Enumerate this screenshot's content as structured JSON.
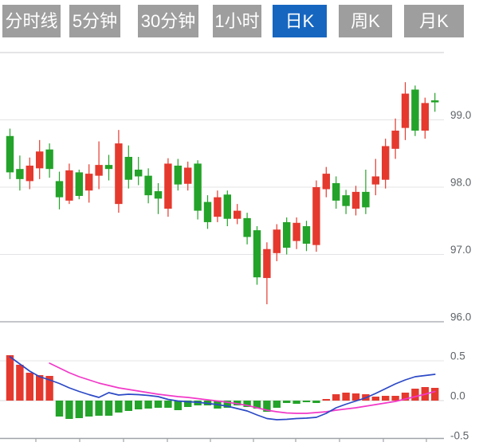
{
  "tabs": {
    "active_index": 4,
    "items": [
      {
        "name": "tab-time-line",
        "label": "分时线"
      },
      {
        "name": "tab-5min",
        "label": "5分钟"
      },
      {
        "name": "tab-30min",
        "label": "30分钟"
      },
      {
        "name": "tab-1hour",
        "label": "1小时"
      },
      {
        "name": "tab-daily-k",
        "label": "日K"
      },
      {
        "name": "tab-weekly-k",
        "label": "周K"
      },
      {
        "name": "tab-monthly-k",
        "label": "月K"
      }
    ]
  },
  "colors": {
    "up": "#e5392e",
    "down": "#23a329",
    "dif_line": "#2c49c6",
    "dea_line": "#f238c8",
    "tab_bg": "#9e9e9e",
    "tab_active_bg": "#1666c0",
    "tab_text": "#ffffff",
    "grid": "#e4e4e6",
    "panel_top_border": "#cbcbcd",
    "panel_bottom_border": "#b0b3b8",
    "zero_line": "#d9d9db",
    "x_axis": "#9fa3a8",
    "axis_label": "#5f6468"
  },
  "chart_data": {
    "type": "candlestick",
    "description": "Daily K-line chart with MACD sub-panel; red = up, green = down (Chinese convention)",
    "price_panel": {
      "y_axis_labels": [
        {
          "text": "99.0",
          "value": 99.0
        },
        {
          "text": "98.0",
          "value": 98.0
        },
        {
          "text": "97.0",
          "value": 97.0
        },
        {
          "text": "96.0",
          "value": 96.0
        }
      ],
      "y_range": [
        96.0,
        100.0
      ],
      "grid_values": [
        99.0,
        98.0,
        97.0
      ],
      "candle_format": [
        "open",
        "high",
        "low",
        "close",
        "color(r=up,g=down)"
      ],
      "candles": [
        [
          98.76,
          98.87,
          98.12,
          98.22,
          "g"
        ],
        [
          98.27,
          98.47,
          97.95,
          98.12,
          "g"
        ],
        [
          98.09,
          98.44,
          97.97,
          98.32,
          "r"
        ],
        [
          98.28,
          98.7,
          98.12,
          98.53,
          "r"
        ],
        [
          98.56,
          98.65,
          98.14,
          98.27,
          "g"
        ],
        [
          98.09,
          98.23,
          97.67,
          97.85,
          "g"
        ],
        [
          97.8,
          98.35,
          97.75,
          98.25,
          "r"
        ],
        [
          98.22,
          98.26,
          97.82,
          97.87,
          "g"
        ],
        [
          97.95,
          98.34,
          97.77,
          98.2,
          "r"
        ],
        [
          98.17,
          98.68,
          97.97,
          98.33,
          "r"
        ],
        [
          98.33,
          98.48,
          98.1,
          98.27,
          "g"
        ],
        [
          97.75,
          98.85,
          97.62,
          98.65,
          "r"
        ],
        [
          98.45,
          98.62,
          97.98,
          98.11,
          "g"
        ],
        [
          98.26,
          98.45,
          98.03,
          98.16,
          "g"
        ],
        [
          98.17,
          98.28,
          97.76,
          97.88,
          "g"
        ],
        [
          97.94,
          98.06,
          97.6,
          97.83,
          "g"
        ],
        [
          97.68,
          98.43,
          97.56,
          98.35,
          "r"
        ],
        [
          98.32,
          98.42,
          97.95,
          98.04,
          "g"
        ],
        [
          98.05,
          98.38,
          97.95,
          98.29,
          "r"
        ],
        [
          98.35,
          98.4,
          97.52,
          97.65,
          "g"
        ],
        [
          97.78,
          97.88,
          97.38,
          97.48,
          "g"
        ],
        [
          97.56,
          97.95,
          97.48,
          97.85,
          "r"
        ],
        [
          97.89,
          97.95,
          97.42,
          97.53,
          "g"
        ],
        [
          97.53,
          97.75,
          97.45,
          97.65,
          "r"
        ],
        [
          97.54,
          97.62,
          97.15,
          97.26,
          "g"
        ],
        [
          97.36,
          97.42,
          96.55,
          96.66,
          "g"
        ],
        [
          96.65,
          97.18,
          96.26,
          97.08,
          "r"
        ],
        [
          97.02,
          97.45,
          96.9,
          97.37,
          "r"
        ],
        [
          97.48,
          97.55,
          97.0,
          97.1,
          "g"
        ],
        [
          97.2,
          97.55,
          97.08,
          97.47,
          "r"
        ],
        [
          97.42,
          97.5,
          97.05,
          97.16,
          "g"
        ],
        [
          97.14,
          98.1,
          97.04,
          98.0,
          "r"
        ],
        [
          97.97,
          98.3,
          97.85,
          98.2,
          "r"
        ],
        [
          98.06,
          98.16,
          97.68,
          97.8,
          "g"
        ],
        [
          97.88,
          97.96,
          97.6,
          97.72,
          "g"
        ],
        [
          97.68,
          98.02,
          97.58,
          97.93,
          "r"
        ],
        [
          97.93,
          98.26,
          97.6,
          97.7,
          "g"
        ],
        [
          98.04,
          98.42,
          97.88,
          98.16,
          "r"
        ],
        [
          98.11,
          98.72,
          97.98,
          98.61,
          "r"
        ],
        [
          98.57,
          99.02,
          98.42,
          98.84,
          "r"
        ],
        [
          98.88,
          99.56,
          98.7,
          99.39,
          "r"
        ],
        [
          99.45,
          99.51,
          98.76,
          98.84,
          "g"
        ],
        [
          98.84,
          99.33,
          98.72,
          99.25,
          "r"
        ],
        [
          99.29,
          99.4,
          99.12,
          99.26,
          "g"
        ]
      ]
    },
    "macd_panel": {
      "y_axis_labels": [
        {
          "text": "0.5",
          "value": 0.5
        },
        {
          "text": "0.0",
          "value": 0.0
        },
        {
          "text": "-0.5",
          "value": -0.5
        }
      ],
      "y_range": [
        -0.5,
        0.6
      ],
      "grid_values": [
        0.5
      ],
      "histogram": [
        0.57,
        0.45,
        0.35,
        0.32,
        0.31,
        -0.2,
        -0.23,
        -0.22,
        -0.2,
        -0.19,
        -0.19,
        -0.15,
        -0.13,
        -0.11,
        -0.1,
        -0.09,
        -0.09,
        -0.12,
        -0.08,
        -0.06,
        -0.06,
        -0.1,
        -0.09,
        -0.06,
        -0.08,
        -0.1,
        -0.14,
        -0.09,
        -0.03,
        -0.04,
        -0.02,
        -0.03,
        0.02,
        0.08,
        0.1,
        0.09,
        0.08,
        0.05,
        0.06,
        0.06,
        0.1,
        0.15,
        0.17,
        0.16
      ],
      "dif": [
        0.55,
        0.46,
        0.37,
        0.3,
        0.26,
        0.215,
        0.16,
        0.115,
        0.075,
        0.04,
        0.1,
        0.07,
        0.08,
        0.075,
        0.065,
        0.05,
        0.015,
        -0.005,
        -0.015,
        -0.02,
        -0.035,
        -0.05,
        -0.07,
        -0.1,
        -0.13,
        -0.18,
        -0.225,
        -0.24,
        -0.235,
        -0.225,
        -0.22,
        -0.21,
        -0.16,
        -0.09,
        -0.045,
        -0.005,
        0.035,
        0.09,
        0.15,
        0.21,
        0.26,
        0.3,
        0.315,
        0.33
      ],
      "dea": [
        null,
        null,
        null,
        null,
        0.47,
        0.41,
        0.35,
        0.3,
        0.26,
        0.22,
        0.19,
        0.16,
        0.14,
        0.12,
        0.1,
        0.08,
        0.065,
        0.05,
        0.04,
        0.025,
        0.01,
        -0.005,
        -0.02,
        -0.04,
        -0.06,
        -0.09,
        -0.12,
        -0.14,
        -0.155,
        -0.16,
        -0.16,
        -0.15,
        -0.14,
        -0.12,
        -0.105,
        -0.09,
        -0.07,
        -0.05,
        -0.03,
        -0.01,
        0.02,
        0.05,
        0.08,
        0.115
      ]
    },
    "x_axis_ticks": [
      45,
      100,
      155,
      210,
      264,
      318,
      371,
      426,
      481,
      535
    ]
  }
}
